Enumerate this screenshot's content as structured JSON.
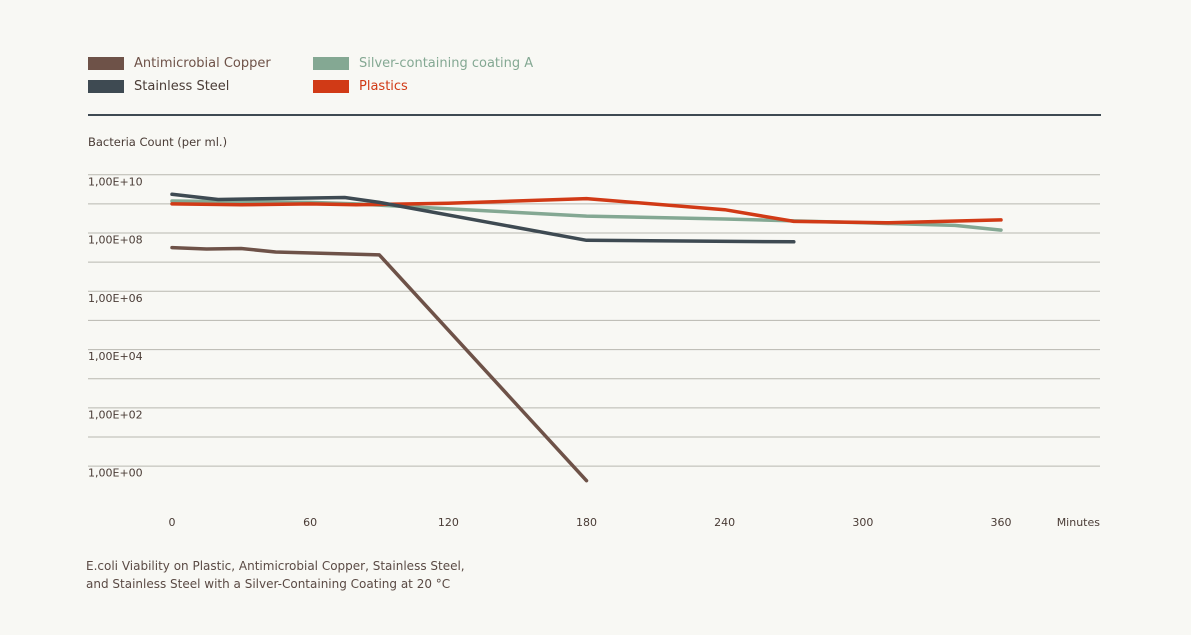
{
  "chart_data": {
    "type": "line",
    "ylabel": "Bacteria Count (per ml.)",
    "xlabel": "Minutes",
    "yscale": "log10",
    "ylim_exp": [
      -0.8,
      10.8
    ],
    "xlim": [
      0,
      360
    ],
    "xticks": [
      0,
      60,
      120,
      180,
      240,
      300,
      360
    ],
    "xtick_labels": [
      "0",
      "60",
      "120",
      "180",
      "240",
      "300",
      "360"
    ],
    "ytick_exps": [
      0,
      2,
      4,
      6,
      8,
      10
    ],
    "ytick_labels": [
      "1,00E+00",
      "1,00E+02",
      "1,00E+04",
      "1,00E+06",
      "1,00E+08",
      "1,00E+10"
    ],
    "grid_exps": [
      0.5,
      1.5,
      2.5,
      3.5,
      4.5,
      5.5,
      6.5,
      7.5,
      8.5,
      9.5,
      10.5
    ],
    "legend_position": "top-left",
    "series": [
      {
        "name": "Antimicrobial Copper",
        "color": "#6e5248",
        "x": [
          0,
          15,
          30,
          45,
          90,
          180
        ],
        "y_exp": [
          8.0,
          7.95,
          7.97,
          7.85,
          7.75,
          0.0
        ]
      },
      {
        "name": "Stainless Steel",
        "color": "#3e4a52",
        "x": [
          0,
          20,
          75,
          90,
          180,
          270
        ],
        "y_exp": [
          9.83,
          9.65,
          9.72,
          9.55,
          8.25,
          8.2
        ]
      },
      {
        "name": "Silver-containing coating A",
        "color": "#84a893",
        "x": [
          0,
          30,
          60,
          80,
          180,
          240,
          300,
          340,
          360
        ],
        "y_exp": [
          9.6,
          9.57,
          9.55,
          9.5,
          9.08,
          8.98,
          8.85,
          8.76,
          8.6
        ]
      },
      {
        "name": "Plastics",
        "color": "#d13a16",
        "x": [
          0,
          30,
          60,
          80,
          120,
          180,
          240,
          270,
          310,
          360
        ],
        "y_exp": [
          9.5,
          9.47,
          9.5,
          9.47,
          9.52,
          9.68,
          9.3,
          8.9,
          8.85,
          8.95
        ]
      }
    ],
    "caption_lines": [
      "E.coli Viability on Plastic, Antimicrobial Copper, Stainless Steel,",
      "and Stainless Steel with a Silver-Containing Coating at 20 °C"
    ]
  }
}
